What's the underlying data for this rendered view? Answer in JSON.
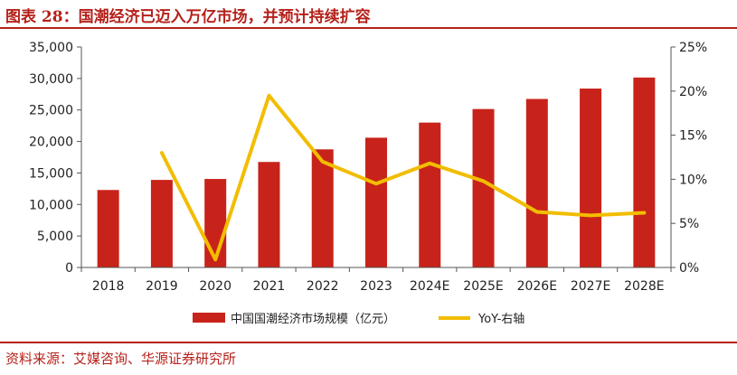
{
  "figure": {
    "title": "图表 28：国潮经济已迈入万亿市场，并预计持续扩容",
    "source": "资料来源：艾媒咨询、华源证券研究所"
  },
  "colors": {
    "accent": "#b5211b",
    "bar": "#c8231a",
    "line": "#f2bd00"
  },
  "chart_data": {
    "type": "bar",
    "categories": [
      "2018",
      "2019",
      "2020",
      "2021",
      "2022",
      "2023",
      "2024E",
      "2025E",
      "2026E",
      "2027E",
      "2028E"
    ],
    "series": [
      {
        "name": "中国国潮经济市场规模（亿元）",
        "type": "bar",
        "axis": "left",
        "values": [
          12300,
          13900,
          14050,
          16750,
          18750,
          20600,
          23000,
          25150,
          26750,
          28400,
          30150
        ]
      },
      {
        "name": "YoY-右轴",
        "type": "line",
        "axis": "right",
        "values": [
          null,
          13.0,
          0.9,
          19.5,
          12.0,
          9.5,
          11.8,
          9.8,
          6.3,
          5.9,
          6.2
        ]
      }
    ],
    "ylim_left": [
      0,
      35000
    ],
    "yticks_left": [
      "0",
      "5,000",
      "10,000",
      "15,000",
      "20,000",
      "25,000",
      "30,000",
      "35,000"
    ],
    "ylim_right": [
      0,
      25
    ],
    "yticks_right": [
      "0%",
      "5%",
      "10%",
      "15%",
      "20%",
      "25%"
    ],
    "legend_position": "bottom",
    "grid": false
  }
}
